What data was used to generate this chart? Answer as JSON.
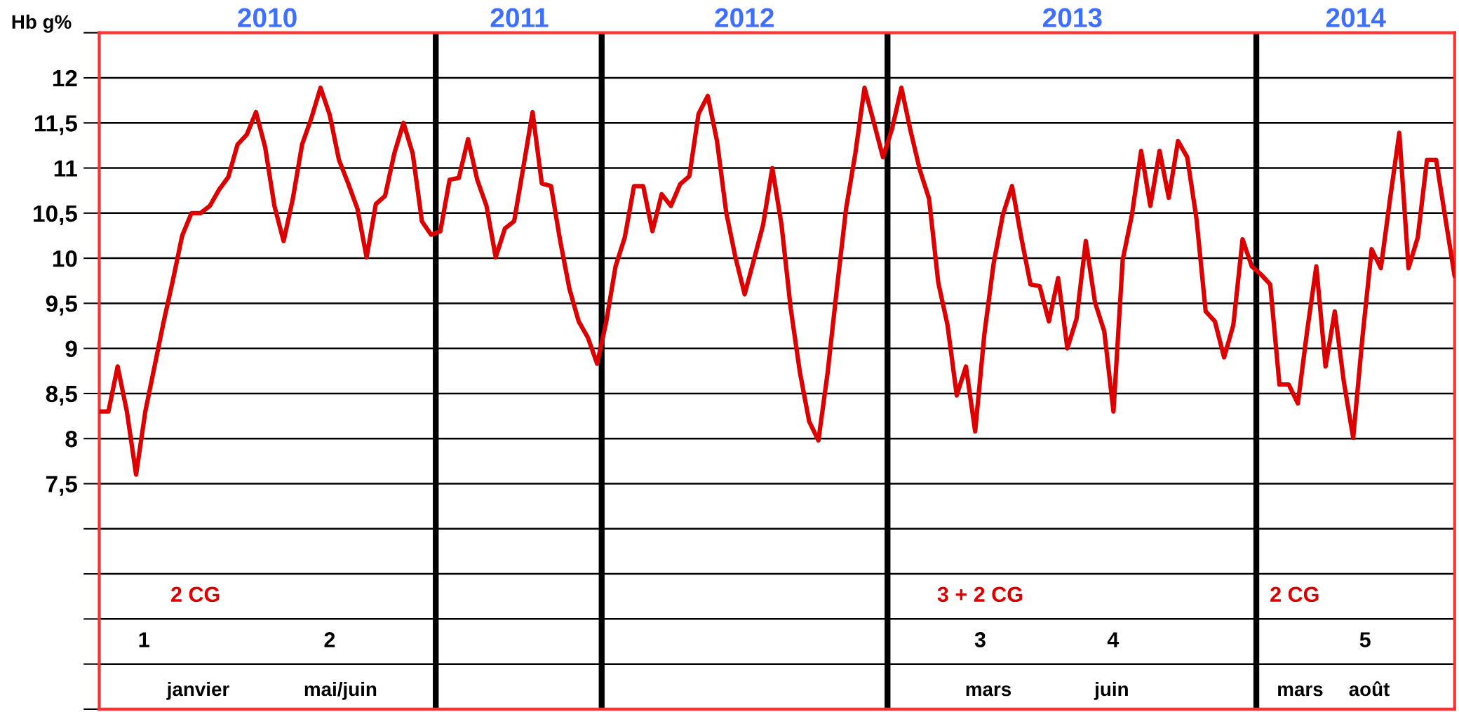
{
  "chart_data": {
    "type": "line",
    "ylabel": "Hb g%",
    "tick_labels": "y",
    "grid": "y",
    "marker": "none",
    "line_style": "solid",
    "categories": [
      null,
      null,
      null,
      null,
      null,
      null,
      null,
      null,
      null,
      null,
      null,
      null,
      null,
      null,
      null,
      null,
      null,
      null,
      null,
      null,
      null,
      null,
      null,
      null,
      null,
      null,
      null,
      null,
      null,
      null,
      null,
      null,
      null,
      null,
      null,
      null,
      null,
      null,
      null,
      null,
      null,
      null,
      null,
      null,
      null,
      null,
      null,
      null,
      null,
      null,
      null,
      null,
      null,
      null,
      null,
      null,
      null,
      null,
      null,
      null,
      null,
      null,
      null,
      null,
      null,
      null,
      null,
      null,
      null,
      null,
      null,
      null,
      null,
      null,
      null,
      null,
      null,
      null,
      null,
      null,
      null,
      null,
      null,
      null,
      null,
      null,
      null,
      null,
      null,
      null,
      null,
      null,
      null,
      null,
      null,
      null,
      null,
      null,
      null,
      null,
      null,
      null,
      null,
      null,
      null,
      null,
      null,
      null,
      null,
      null,
      null,
      null,
      null,
      null,
      null,
      null,
      null,
      null,
      null,
      null,
      null,
      null,
      null,
      null,
      null,
      null,
      null,
      null,
      null,
      null,
      null,
      null,
      null,
      null,
      null,
      null,
      null,
      null,
      null,
      null,
      null,
      null,
      null,
      null,
      null,
      null,
      null,
      null
    ],
    "ylim": [
      5,
      12.5
    ],
    "yticks": [
      {
        "value": 5,
        "label": null
      },
      {
        "value": 5.5,
        "label": null
      },
      {
        "value": 6,
        "label": null
      },
      {
        "value": 6.5,
        "label": null
      },
      {
        "value": 7,
        "label": null
      },
      {
        "value": 7.5,
        "label": "7,5"
      },
      8,
      {
        "value": 8.5,
        "label": "8,5"
      },
      9,
      {
        "value": 9.5,
        "label": "9,5"
      },
      10,
      {
        "value": 10.5,
        "label": "10,5"
      },
      11,
      {
        "value": 11.5,
        "label": "11,5"
      },
      12,
      {
        "value": 12.5,
        "label": null
      }
    ],
    "series": [
      {
        "color": "#dd0000",
        "values": [
          8.3,
          8.3,
          8.8,
          8.3,
          7.6,
          8.3,
          8.8,
          9.3,
          9.76,
          10.25,
          10.5,
          10.5,
          10.58,
          10.76,
          10.9,
          11.26,
          11.37,
          11.62,
          11.23,
          10.58,
          10.19,
          10.66,
          11.26,
          11.55,
          11.89,
          11.59,
          11.09,
          10.83,
          10.55,
          10.01,
          10.6,
          10.69,
          11.16,
          11.5,
          11.16,
          10.41,
          10.26,
          10.3,
          10.87,
          10.89,
          11.32,
          10.87,
          10.58,
          10.01,
          10.33,
          10.41,
          11.01,
          11.62,
          10.83,
          10.8,
          10.19,
          9.66,
          9.3,
          9.12,
          8.83,
          9.3,
          9.91,
          10.23,
          10.8,
          10.8,
          10.3,
          10.71,
          10.58,
          10.82,
          10.91,
          11.6,
          11.8,
          11.3,
          10.51,
          10.01,
          9.6,
          9.98,
          10.37,
          11.0,
          10.37,
          9.44,
          8.73,
          8.19,
          7.98,
          8.73,
          9.66,
          10.55,
          11.16,
          11.89,
          11.51,
          11.12,
          11.44,
          11.89,
          11.41,
          10.98,
          10.66,
          9.73,
          9.26,
          8.48,
          8.8,
          8.08,
          9.16,
          9.94,
          10.48,
          10.8,
          10.23,
          9.71,
          9.69,
          9.3,
          9.78,
          9.0,
          9.33,
          10.19,
          9.51,
          9.19,
          8.3,
          9.98,
          10.48,
          11.19,
          10.58,
          11.19,
          10.67,
          11.3,
          11.12,
          10.44,
          9.41,
          9.3,
          8.9,
          9.26,
          10.21,
          9.91,
          9.82,
          9.71,
          8.6,
          8.6,
          8.39,
          9.19,
          9.91,
          8.8,
          9.41,
          8.62,
          8.01,
          9.12,
          10.1,
          9.89,
          10.66,
          11.39,
          9.89,
          10.23,
          11.09,
          11.09,
          10.44,
          9.8
        ]
      }
    ],
    "annotations": [
      "2010",
      "2011",
      "2012",
      "2013",
      "2014",
      "2 CG",
      "3 + 2 CG",
      "2 CG",
      "1",
      "2",
      "3",
      "4",
      "5",
      "janvier",
      "mai/juin",
      "mars",
      "juin",
      "mars",
      "août"
    ]
  }
}
